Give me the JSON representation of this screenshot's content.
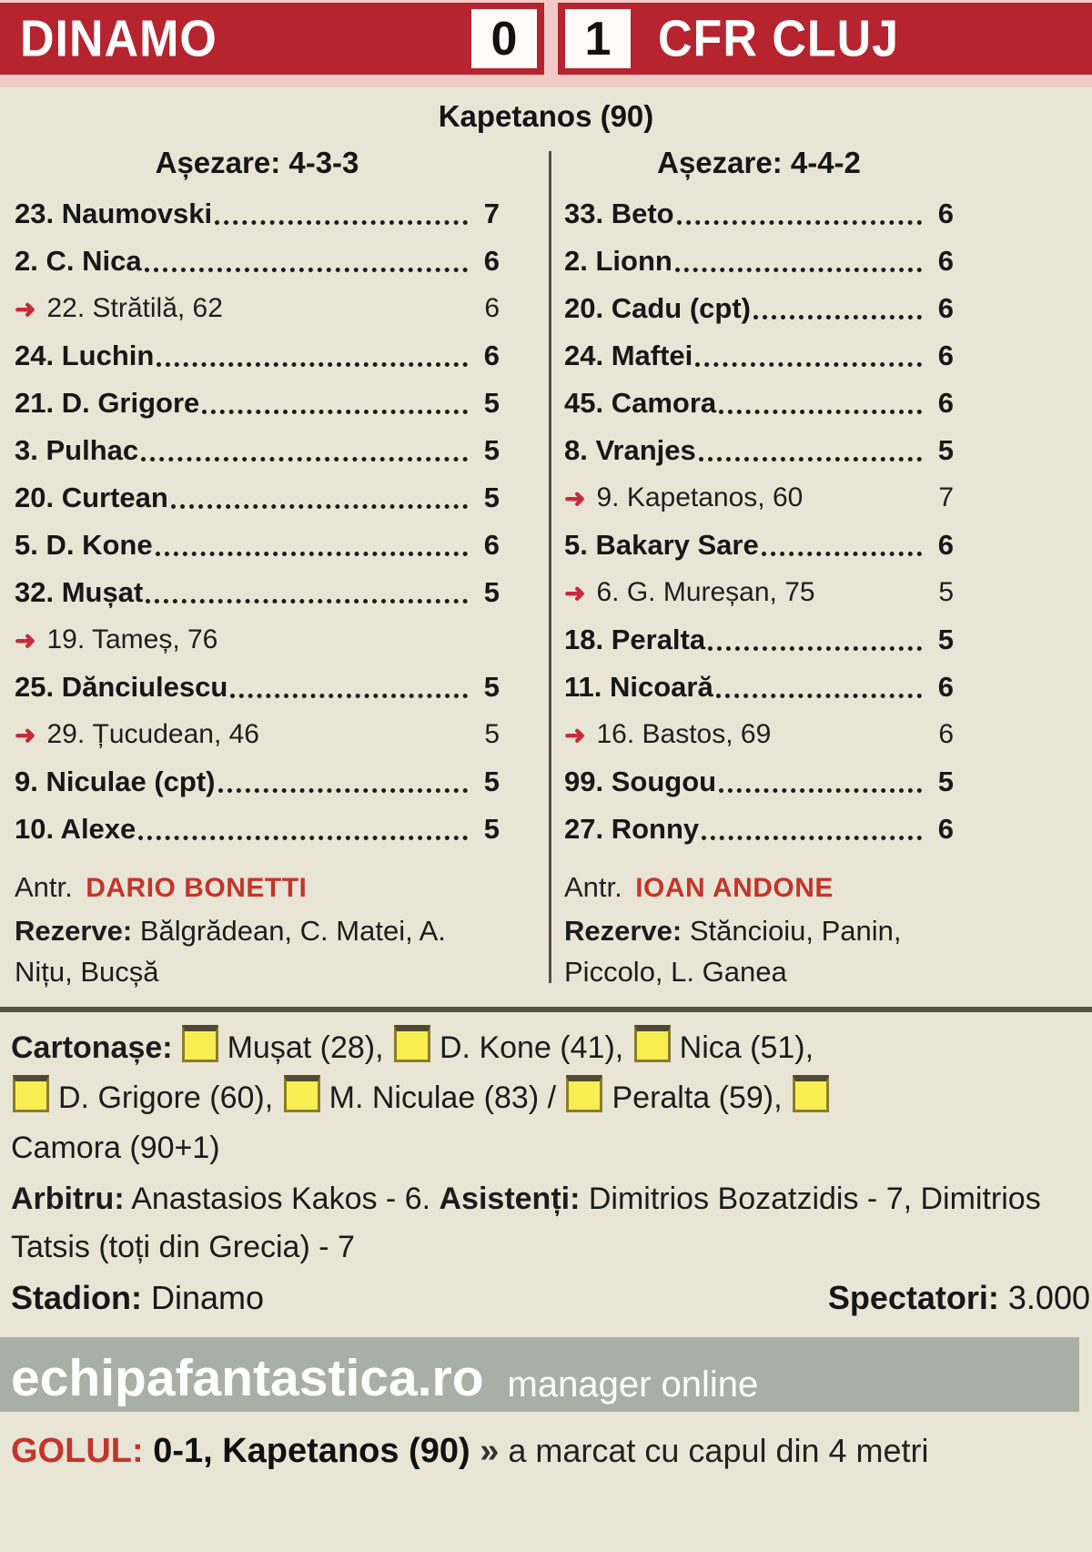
{
  "scoreboard": {
    "home_team": "DINAMO",
    "home_score": "0",
    "away_score": "1",
    "away_team": "CFR CLUJ",
    "goal_line": "Kapetanos (90)"
  },
  "home": {
    "formation": "Așezare: 4-3-3",
    "players": [
      {
        "no_name": "23. Naumovski",
        "rating": "7",
        "sub": false
      },
      {
        "no_name": "2. C. Nica",
        "rating": "6",
        "sub": false
      },
      {
        "no_name": "22. Strătilă, 62",
        "rating": "6",
        "sub": true
      },
      {
        "no_name": "24. Luchin",
        "rating": "6",
        "sub": false
      },
      {
        "no_name": "21. D. Grigore",
        "rating": "5",
        "sub": false
      },
      {
        "no_name": "3. Pulhac",
        "rating": "5",
        "sub": false
      },
      {
        "no_name": "20. Curtean",
        "rating": "5",
        "sub": false
      },
      {
        "no_name": "5. D. Kone",
        "rating": "6",
        "sub": false
      },
      {
        "no_name": "32. Mușat",
        "rating": "5",
        "sub": false
      },
      {
        "no_name": "19. Tameș, 76",
        "rating": "",
        "sub": true
      },
      {
        "no_name": "25. Dănciulescu",
        "rating": "5",
        "sub": false
      },
      {
        "no_name": "29. Țucudean, 46",
        "rating": "5",
        "sub": true
      },
      {
        "no_name": "9. Niculae (cpt)",
        "rating": "5",
        "sub": false
      },
      {
        "no_name": "10. Alexe",
        "rating": "5",
        "sub": false
      }
    ],
    "coach_label": "Antr.",
    "coach": "DARIO BONETTI",
    "reserves_label": "Rezerve:",
    "reserves": " Bălgrădean, C. Matei, A. Nițu, Bucșă"
  },
  "away": {
    "formation": "Așezare: 4-4-2",
    "players": [
      {
        "no_name": "33. Beto",
        "rating": "6",
        "sub": false
      },
      {
        "no_name": "2. Lionn",
        "rating": "6",
        "sub": false
      },
      {
        "no_name": "20. Cadu (cpt)",
        "rating": "6",
        "sub": false
      },
      {
        "no_name": "24. Maftei",
        "rating": "6",
        "sub": false
      },
      {
        "no_name": "45. Camora",
        "rating": "6",
        "sub": false
      },
      {
        "no_name": "8. Vranjes",
        "rating": "5",
        "sub": false
      },
      {
        "no_name": "9. Kapetanos, 60",
        "rating": "7",
        "sub": true
      },
      {
        "no_name": "5. Bakary Sare",
        "rating": "6",
        "sub": false
      },
      {
        "no_name": "6. G. Mureșan, 75",
        "rating": "5",
        "sub": true
      },
      {
        "no_name": "18. Peralta",
        "rating": "5",
        "sub": false
      },
      {
        "no_name": "11. Nicoară",
        "rating": "6",
        "sub": false
      },
      {
        "no_name": "16. Bastos, 69",
        "rating": "6",
        "sub": true
      },
      {
        "no_name": "99. Sougou",
        "rating": "5",
        "sub": false
      },
      {
        "no_name": "27. Ronny",
        "rating": "6",
        "sub": false
      }
    ],
    "coach_label": "Antr.",
    "coach": "IOAN ANDONE",
    "reserves_label": "Rezerve:",
    "reserves": " Stăncioiu, Panin, Piccolo, L. Ganea"
  },
  "cards": {
    "label": "Cartonașe:",
    "lines": [
      [
        {
          "card": true
        },
        {
          "text": "Mușat (28), "
        },
        {
          "card": true
        },
        {
          "text": "D. Kone (41), "
        },
        {
          "card": true
        },
        {
          "text": "Nica (51),"
        }
      ],
      [
        {
          "card": true
        },
        {
          "text": "D. Grigore (60), "
        },
        {
          "card": true
        },
        {
          "text": "M. Niculae (83) / "
        },
        {
          "card": true
        },
        {
          "text": "Peralta (59), "
        },
        {
          "card": true
        }
      ],
      [
        {
          "text": "Camora (90+1)"
        }
      ]
    ]
  },
  "officials": {
    "referee_label": "Arbitru:",
    "referee": " Anastasios Kakos - 6. ",
    "assistants_label": "Asistenți:",
    "assistants": " Dimitrios Bozatzidis - 7, Dimitrios Tatsis (toți din Grecia) - 7"
  },
  "venue": {
    "stadium_label": "Stadion:",
    "stadium": " Dinamo",
    "spectators_label": "Spectatori:",
    "spectators": " 3.000"
  },
  "banner": {
    "site": "echipafantastica.ro",
    "tagline": "manager online"
  },
  "goal": {
    "label": "GOLUL:",
    "score_scorer": " 0-1, Kapetanos (90) ",
    "arrow": "»",
    "description": " a marcat cu capul din 4 metri"
  },
  "colors": {
    "bar_red": "#b5242f",
    "pink_trim": "#f2cbc7",
    "accent_red": "#c3352b",
    "sub_arrow_red": "#c52b3a",
    "card_yellow": "#f8ee52",
    "banner_gray": "#a9afa7",
    "divider_dark": "#54534a",
    "background": "#e8e5d6"
  }
}
